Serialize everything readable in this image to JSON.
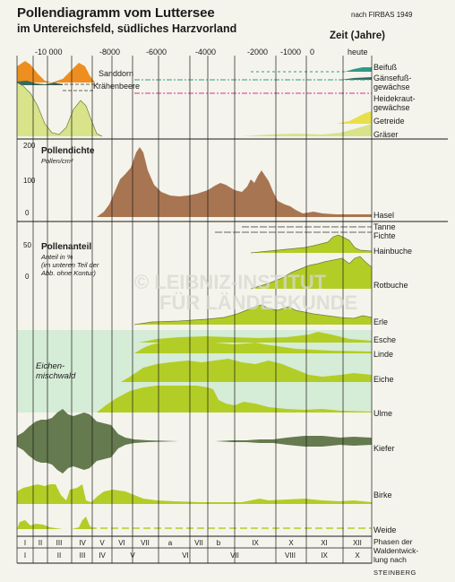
{
  "header": {
    "title_line1": "Pollendiagramm vom Luttersee",
    "title_line2": "im Untereichsfeld, südliches Harzvorland",
    "source": "nach FIRBAS 1949",
    "time_axis_label": "Zeit (Jahre)"
  },
  "watermark": {
    "line1": "© LEIBNIZ-INSTITUT",
    "line2": "FÜR LÄNDERKUNDE"
  },
  "colors": {
    "background": "#f4f4ec",
    "green": "#b3cd27",
    "green_light": "#d8e38a",
    "brown": "#a87552",
    "dark_green": "#657a4f",
    "orange": "#ee8e20",
    "teal": "#2f9a88",
    "dark_teal": "#356a5e",
    "magenta": "#d4309a",
    "mint_band": "#d5ecd6"
  },
  "chart_data": {
    "type": "area",
    "x_label": "Zeit (Jahre)",
    "x_ticks": [
      "-10 000",
      "-8000",
      "-6000",
      "-4000",
      "-2000",
      "-1000",
      "0",
      "heute"
    ],
    "x_tick_years": [
      -10000,
      -8000,
      -6000,
      -4000,
      -2000,
      -1000,
      0,
      1949
    ],
    "panels": [
      {
        "name": "top",
        "series": [
          {
            "name": "Sanddorn",
            "color": "#ee8e20"
          },
          {
            "name": "Krähenbeere",
            "color": "#356a5e"
          },
          {
            "name": "Beifuß",
            "color": "#2f9a88"
          },
          {
            "name": "Gänsefußgewächse",
            "label_lines": [
              "Gänsefuß-",
              "gewächse"
            ],
            "color": "#356a5e"
          },
          {
            "name": "Heidekrautgewächse",
            "label_lines": [
              "Heidekraut-",
              "gewächse"
            ],
            "color": "#d4309a"
          },
          {
            "name": "Getreide",
            "color": "#f0e060"
          },
          {
            "name": "Gräser",
            "color": "#d8e38a"
          }
        ]
      },
      {
        "name": "pollendichte",
        "title": "Pollendichte",
        "unit": "Pollen/cm²",
        "y_ticks": [
          "200",
          "100",
          "0"
        ],
        "y_tick_values": [
          200,
          100,
          0
        ],
        "series": [
          {
            "name": "Hasel",
            "color": "#a87552"
          }
        ]
      },
      {
        "name": "pollenanteil",
        "title": "Pollenanteil",
        "unit_lines": [
          "Anteil in %",
          "(im unteren Teil der",
          "Abb. ohne Kontur)"
        ],
        "y_ticks": [
          "50",
          "0"
        ],
        "y_tick_values": [
          50,
          0
        ],
        "band_label_lines": [
          "Eichen-",
          "mischwald"
        ],
        "series": [
          {
            "name": "Tanne"
          },
          {
            "name": "Fichte"
          },
          {
            "name": "Hainbuche"
          },
          {
            "name": "Rotbuche"
          },
          {
            "name": "Erle"
          },
          {
            "name": "Esche"
          },
          {
            "name": "Linde"
          },
          {
            "name": "Eiche"
          },
          {
            "name": "Ulme"
          },
          {
            "name": "Kiefer",
            "color": "#657a4f"
          },
          {
            "name": "Birke"
          },
          {
            "name": "Weide"
          }
        ]
      }
    ],
    "phases": {
      "row1": [
        "I",
        "II",
        "III",
        "IV",
        "V",
        "VI",
        "VII",
        "a",
        "VII",
        "b",
        "IX",
        "X",
        "XI",
        "XII"
      ],
      "row2": [
        "I",
        "II",
        "III",
        "IV",
        "V",
        "VI",
        "VII",
        "VIII",
        "IX",
        "X"
      ],
      "label_lines": [
        "Phasen der",
        "Waldentwick-",
        "lung nach"
      ],
      "label_name": "STEINBERG"
    }
  }
}
